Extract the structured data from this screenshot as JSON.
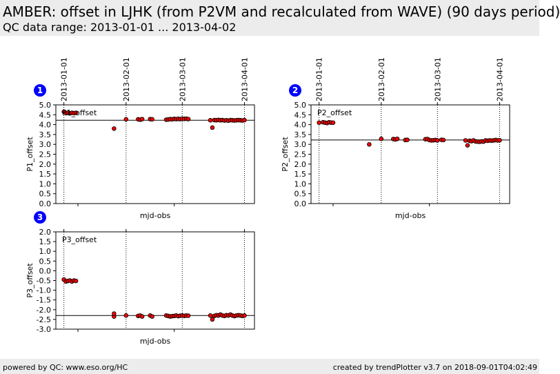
{
  "header": {
    "title": "AMBER: offset in LJHK (from P2VM and recalculated from WAVE) (90 days period)",
    "subtitle": "QC data range: 2013-01-01 ... 2013-04-02"
  },
  "footer": {
    "left": "powered by QC: www.eso.org/HC",
    "right": "created by trendPlotter v3.7 on 2018-09-01T04:02:49"
  },
  "colors": {
    "marker_fill": "#ff0000",
    "marker_edge": "#000000",
    "badge": "#0000ff"
  },
  "date_ticks": [
    "2013-01-01",
    "2013-02-01",
    "2013-03-01",
    "2013-04-01"
  ],
  "chart_data": [
    {
      "type": "scatter",
      "badge": "1",
      "series_label": "P1_offset",
      "xlabel": "mjd-obs",
      "ylabel": "P1_offset",
      "xlim": [
        "2012-12-28",
        "2013-04-06"
      ],
      "ylim": [
        0.0,
        5.0
      ],
      "yticks": [
        "0.0",
        "0.5",
        "1.0",
        "1.5",
        "2.0",
        "2.5",
        "3.0",
        "3.5",
        "4.0",
        "4.5",
        "5.0"
      ],
      "reference_line": 4.22,
      "points": [
        [
          "2013-01-01",
          4.65
        ],
        [
          "2013-01-02",
          4.58
        ],
        [
          "2013-01-03",
          4.6
        ],
        [
          "2013-01-04",
          4.57
        ],
        [
          "2013-01-05",
          4.6
        ],
        [
          "2013-01-06",
          4.58
        ],
        [
          "2013-01-07",
          4.6
        ],
        [
          "2013-01-26",
          3.8
        ],
        [
          "2013-02-01",
          4.27
        ],
        [
          "2013-02-07",
          4.27
        ],
        [
          "2013-02-08",
          4.25
        ],
        [
          "2013-02-09",
          4.28
        ],
        [
          "2013-02-13",
          4.28
        ],
        [
          "2013-02-14",
          4.27
        ],
        [
          "2013-02-21",
          4.25
        ],
        [
          "2013-02-22",
          4.26
        ],
        [
          "2013-02-23",
          4.28
        ],
        [
          "2013-02-24",
          4.27
        ],
        [
          "2013-02-25",
          4.29
        ],
        [
          "2013-02-26",
          4.28
        ],
        [
          "2013-02-27",
          4.29
        ],
        [
          "2013-02-28",
          4.28
        ],
        [
          "2013-03-01",
          4.3
        ],
        [
          "2013-03-02",
          4.29
        ],
        [
          "2013-03-03",
          4.3
        ],
        [
          "2013-03-04",
          4.28
        ],
        [
          "2013-03-15",
          4.22
        ],
        [
          "2013-03-16",
          3.85
        ],
        [
          "2013-03-17",
          4.23
        ],
        [
          "2013-03-18",
          4.22
        ],
        [
          "2013-03-19",
          4.24
        ],
        [
          "2013-03-20",
          4.22
        ],
        [
          "2013-03-21",
          4.23
        ],
        [
          "2013-03-22",
          4.21
        ],
        [
          "2013-03-23",
          4.22
        ],
        [
          "2013-03-24",
          4.2
        ],
        [
          "2013-03-25",
          4.23
        ],
        [
          "2013-03-26",
          4.22
        ],
        [
          "2013-03-27",
          4.21
        ],
        [
          "2013-03-28",
          4.22
        ],
        [
          "2013-03-29",
          4.23
        ],
        [
          "2013-03-30",
          4.22
        ],
        [
          "2013-03-31",
          4.21
        ],
        [
          "2013-04-01",
          4.23
        ]
      ]
    },
    {
      "type": "scatter",
      "badge": "2",
      "series_label": "P2_offset",
      "xlabel": "mjd-obs",
      "ylabel": "P2_offset",
      "xlim": [
        "2012-12-28",
        "2013-04-06"
      ],
      "ylim": [
        0.0,
        5.0
      ],
      "yticks": [
        "0.0",
        "0.5",
        "1.0",
        "1.5",
        "2.0",
        "2.5",
        "3.0",
        "3.5",
        "4.0",
        "4.5",
        "5.0"
      ],
      "reference_line": 3.22,
      "points": [
        [
          "2013-01-01",
          4.1
        ],
        [
          "2013-01-03",
          4.12
        ],
        [
          "2013-01-04",
          4.1
        ],
        [
          "2013-01-05",
          4.08
        ],
        [
          "2013-01-06",
          4.12
        ],
        [
          "2013-01-07",
          4.1
        ],
        [
          "2013-01-08",
          4.1
        ],
        [
          "2013-01-26",
          3.0
        ],
        [
          "2013-02-01",
          3.28
        ],
        [
          "2013-02-07",
          3.27
        ],
        [
          "2013-02-08",
          3.25
        ],
        [
          "2013-02-09",
          3.28
        ],
        [
          "2013-02-13",
          3.22
        ],
        [
          "2013-02-14",
          3.23
        ],
        [
          "2013-02-23",
          3.26
        ],
        [
          "2013-02-24",
          3.27
        ],
        [
          "2013-02-25",
          3.22
        ],
        [
          "2013-02-26",
          3.2
        ],
        [
          "2013-02-27",
          3.21
        ],
        [
          "2013-02-28",
          3.22
        ],
        [
          "2013-03-01",
          3.2
        ],
        [
          "2013-03-03",
          3.23
        ],
        [
          "2013-03-04",
          3.22
        ],
        [
          "2013-03-15",
          3.2
        ],
        [
          "2013-03-16",
          2.95
        ],
        [
          "2013-03-17",
          3.18
        ],
        [
          "2013-03-18",
          3.16
        ],
        [
          "2013-03-19",
          3.2
        ],
        [
          "2013-03-20",
          3.15
        ],
        [
          "2013-03-21",
          3.14
        ],
        [
          "2013-03-22",
          3.13
        ],
        [
          "2013-03-23",
          3.15
        ],
        [
          "2013-03-24",
          3.14
        ],
        [
          "2013-03-25",
          3.2
        ],
        [
          "2013-03-26",
          3.18
        ],
        [
          "2013-03-27",
          3.2
        ],
        [
          "2013-03-28",
          3.19
        ],
        [
          "2013-03-29",
          3.2
        ],
        [
          "2013-03-30",
          3.22
        ],
        [
          "2013-03-31",
          3.2
        ],
        [
          "2013-04-01",
          3.21
        ]
      ]
    },
    {
      "type": "scatter",
      "badge": "3",
      "series_label": "P3_offset",
      "xlabel": "mjd-obs",
      "ylabel": "P3_offset",
      "xlim": [
        "2012-12-28",
        "2013-04-06"
      ],
      "ylim": [
        -3.0,
        2.0
      ],
      "yticks": [
        "-3.0",
        "-2.5",
        "-2.0",
        "-1.5",
        "-1.0",
        "-0.5",
        "0.0",
        "0.5",
        "1.0",
        "1.5",
        "2.0"
      ],
      "reference_line": -2.3,
      "points": [
        [
          "2013-01-01",
          -0.45
        ],
        [
          "2013-01-02",
          -0.55
        ],
        [
          "2013-01-03",
          -0.52
        ],
        [
          "2013-01-04",
          -0.5
        ],
        [
          "2013-01-05",
          -0.55
        ],
        [
          "2013-01-06",
          -0.5
        ],
        [
          "2013-01-07",
          -0.52
        ],
        [
          "2013-01-26",
          -2.35
        ],
        [
          "2013-01-26",
          -2.2
        ],
        [
          "2013-02-01",
          -2.3
        ],
        [
          "2013-02-07",
          -2.32
        ],
        [
          "2013-02-08",
          -2.3
        ],
        [
          "2013-02-09",
          -2.35
        ],
        [
          "2013-02-13",
          -2.3
        ],
        [
          "2013-02-14",
          -2.35
        ],
        [
          "2013-02-21",
          -2.3
        ],
        [
          "2013-02-22",
          -2.32
        ],
        [
          "2013-02-23",
          -2.35
        ],
        [
          "2013-02-24",
          -2.33
        ],
        [
          "2013-02-25",
          -2.32
        ],
        [
          "2013-02-26",
          -2.3
        ],
        [
          "2013-02-27",
          -2.33
        ],
        [
          "2013-02-28",
          -2.31
        ],
        [
          "2013-03-01",
          -2.3
        ],
        [
          "2013-03-02",
          -2.32
        ],
        [
          "2013-03-03",
          -2.3
        ],
        [
          "2013-03-04",
          -2.31
        ],
        [
          "2013-03-15",
          -2.3
        ],
        [
          "2013-03-16",
          -2.5
        ],
        [
          "2013-03-17",
          -2.32
        ],
        [
          "2013-03-18",
          -2.28
        ],
        [
          "2013-03-19",
          -2.3
        ],
        [
          "2013-03-20",
          -2.25
        ],
        [
          "2013-03-21",
          -2.3
        ],
        [
          "2013-03-22",
          -2.32
        ],
        [
          "2013-03-23",
          -2.28
        ],
        [
          "2013-03-24",
          -2.3
        ],
        [
          "2013-03-25",
          -2.25
        ],
        [
          "2013-03-26",
          -2.3
        ],
        [
          "2013-03-27",
          -2.33
        ],
        [
          "2013-03-28",
          -2.3
        ],
        [
          "2013-03-29",
          -2.28
        ],
        [
          "2013-03-30",
          -2.3
        ],
        [
          "2013-03-31",
          -2.32
        ],
        [
          "2013-04-01",
          -2.3
        ]
      ]
    }
  ]
}
